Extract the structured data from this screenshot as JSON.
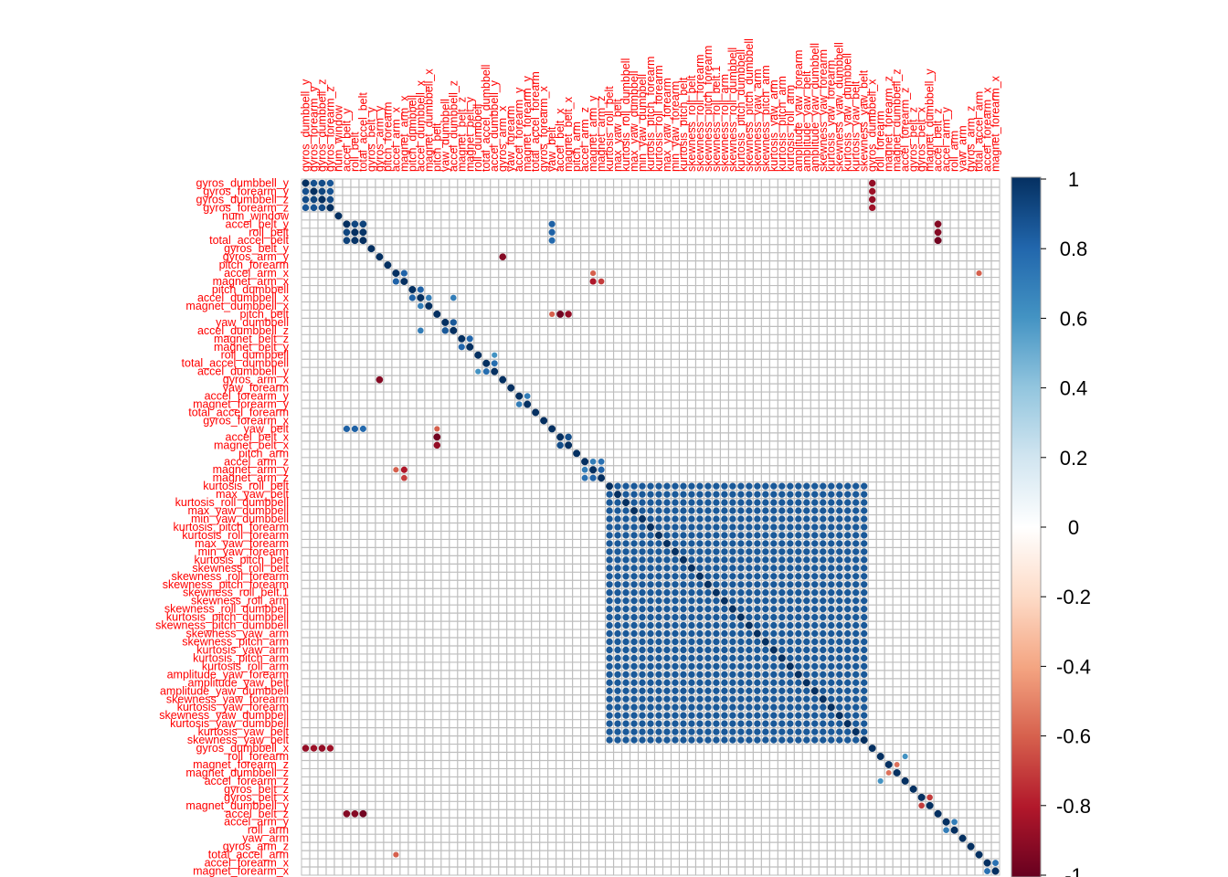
{
  "chart_data": {
    "type": "heatmap",
    "title": "",
    "xlabel": "",
    "ylabel": "",
    "variables": [
      "gyros_dumbbell_y",
      "gyros_forearm_y",
      "gyros_dumbbell_z",
      "gyros_forearm_z",
      "num_window",
      "accel_belt_y",
      "roll_belt",
      "total_accel_belt",
      "gyros_belt_y",
      "gyros_arm_y",
      "pitch_forearm",
      "accel_arm_x",
      "magnet_arm_x",
      "pitch_dumbbell",
      "accel_dumbbell_x",
      "magnet_dumbbell_x",
      "pitch_belt",
      "yaw_dumbbell",
      "accel_dumbbell_z",
      "magnet_belt_z",
      "magnet_belt_y",
      "roll_dumbbell",
      "total_accel_dumbbell",
      "accel_dumbbell_y",
      "gyros_arm_x",
      "yaw_forearm",
      "accel_forearm_y",
      "magnet_forearm_y",
      "total_accel_forearm",
      "gyros_forearm_x",
      "yaw_belt",
      "accel_belt_x",
      "magnet_belt_x",
      "pitch_arm",
      "accel_arm_z",
      "magnet_arm_y",
      "magnet_arm_z",
      "kurtosis_roll_belt",
      "max_yaw_belt",
      "kurtosis_roll_dumbbell",
      "max_yaw_dumbbell",
      "min_yaw_dumbbell",
      "kurtosis_pitch_forearm",
      "kurtosis_roll_forearm",
      "max_yaw_forearm",
      "min_yaw_forearm",
      "kurtosis_pitch_belt",
      "skewness_roll_belt",
      "skewness_roll_forearm",
      "skewness_pitch_forearm",
      "skewness_roll_belt.1",
      "skewness_roll_arm",
      "skewness_roll_dumbbell",
      "kurtosis_pitch_dumbbell",
      "skewness_pitch_dumbbell",
      "skewness_yaw_arm",
      "skewness_pitch_arm",
      "kurtosis_yaw_arm",
      "kurtosis_pitch_arm",
      "kurtosis_roll_arm",
      "amplitude_yaw_forearm",
      "amplitude_yaw_belt",
      "amplitude_yaw_dumbbell",
      "skewness_yaw_forearm",
      "kurtosis_yaw_forearm",
      "skewness_yaw_dumbbell",
      "kurtosis_yaw_dumbbell",
      "kurtosis_yaw_belt",
      "skewness_yaw_belt",
      "gyros_dumbbell_x",
      "roll_forearm",
      "magnet_forearm_z",
      "magnet_dumbbell_z",
      "accel_forearm_z",
      "gyros_belt_z",
      "gyros_belt_x",
      "magnet_dumbbell_y",
      "accel_belt_z",
      "accel_arm_y",
      "roll_arm",
      "yaw_arm",
      "gyros_arm_z",
      "total_accel_arm",
      "accel_forearm_x",
      "magnet_forearm_x"
    ],
    "notable_correlations": [
      {
        "a": "gyros_dumbbell_y",
        "b": "gyros_forearm_y",
        "r": 0.88
      },
      {
        "a": "gyros_dumbbell_y",
        "b": "gyros_dumbbell_z",
        "r": 0.9
      },
      {
        "a": "gyros_dumbbell_y",
        "b": "gyros_forearm_z",
        "r": 0.86
      },
      {
        "a": "gyros_forearm_y",
        "b": "gyros_dumbbell_z",
        "r": 0.92
      },
      {
        "a": "gyros_forearm_y",
        "b": "gyros_forearm_z",
        "r": 0.87
      },
      {
        "a": "gyros_dumbbell_z",
        "b": "gyros_forearm_z",
        "r": 0.9
      },
      {
        "a": "gyros_dumbbell_y",
        "b": "gyros_dumbbell_x",
        "r": -0.88
      },
      {
        "a": "gyros_forearm_y",
        "b": "gyros_dumbbell_x",
        "r": -0.86
      },
      {
        "a": "gyros_dumbbell_z",
        "b": "gyros_dumbbell_x",
        "r": -0.88
      },
      {
        "a": "gyros_forearm_z",
        "b": "gyros_dumbbell_x",
        "r": -0.85
      },
      {
        "a": "accel_belt_y",
        "b": "roll_belt",
        "r": 0.92
      },
      {
        "a": "accel_belt_y",
        "b": "total_accel_belt",
        "r": 0.93
      },
      {
        "a": "roll_belt",
        "b": "total_accel_belt",
        "r": 0.98
      },
      {
        "a": "accel_belt_y",
        "b": "yaw_belt",
        "r": 0.82
      },
      {
        "a": "roll_belt",
        "b": "yaw_belt",
        "r": 0.82
      },
      {
        "a": "total_accel_belt",
        "b": "yaw_belt",
        "r": 0.78
      },
      {
        "a": "roll_belt",
        "b": "accel_belt_z",
        "r": -0.92
      },
      {
        "a": "total_accel_belt",
        "b": "accel_belt_z",
        "r": -0.97
      },
      {
        "a": "accel_belt_y",
        "b": "accel_belt_z",
        "r": -0.92
      },
      {
        "a": "accel_arm_x",
        "b": "magnet_arm_x",
        "r": 0.81
      },
      {
        "a": "accel_arm_x",
        "b": "magnet_arm_y",
        "r": -0.6
      },
      {
        "a": "magnet_arm_x",
        "b": "magnet_arm_y",
        "r": -0.81
      },
      {
        "a": "magnet_arm_x",
        "b": "magnet_arm_z",
        "r": -0.7
      },
      {
        "a": "magnet_arm_y",
        "b": "magnet_arm_z",
        "r": 0.81
      },
      {
        "a": "accel_arm_z",
        "b": "magnet_arm_y",
        "r": 0.7
      },
      {
        "a": "accel_arm_z",
        "b": "magnet_arm_z",
        "r": 0.75
      },
      {
        "a": "pitch_dumbbell",
        "b": "accel_dumbbell_x",
        "r": 0.81
      },
      {
        "a": "accel_dumbbell_x",
        "b": "magnet_dumbbell_x",
        "r": 0.7
      },
      {
        "a": "accel_dumbbell_x",
        "b": "accel_dumbbell_z",
        "r": 0.7
      },
      {
        "a": "yaw_dumbbell",
        "b": "accel_dumbbell_z",
        "r": 0.85
      },
      {
        "a": "pitch_belt",
        "b": "accel_belt_x",
        "r": -0.97
      },
      {
        "a": "pitch_belt",
        "b": "magnet_belt_x",
        "r": -0.88
      },
      {
        "a": "accel_belt_x",
        "b": "magnet_belt_x",
        "r": 0.89
      },
      {
        "a": "pitch_belt",
        "b": "yaw_belt",
        "r": -0.6
      },
      {
        "a": "magnet_belt_z",
        "b": "magnet_belt_y",
        "r": 0.8
      },
      {
        "a": "roll_dumbbell",
        "b": "accel_dumbbell_y",
        "r": 0.6
      },
      {
        "a": "total_accel_dumbbell",
        "b": "accel_dumbbell_y",
        "r": 0.77
      },
      {
        "a": "gyros_arm_x",
        "b": "gyros_arm_y",
        "r": -0.92
      },
      {
        "a": "accel_forearm_y",
        "b": "magnet_forearm_y",
        "r": 0.7
      },
      {
        "a": "gyros_belt_x",
        "b": "magnet_dumbbell_y",
        "r": -0.7
      },
      {
        "a": "roll_forearm",
        "b": "accel_forearm_z",
        "r": 0.6
      },
      {
        "a": "magnet_forearm_z",
        "b": "magnet_dumbbell_z",
        "r": -0.55
      },
      {
        "a": "accel_arm_y",
        "b": "roll_arm",
        "r": 0.7
      },
      {
        "a": "accel_forearm_x",
        "b": "magnet_forearm_x",
        "r": 0.75
      },
      {
        "a": "accel_arm_x",
        "b": "total_accel_arm",
        "r": -0.6
      }
    ],
    "sparse_block": {
      "from": "kurtosis_roll_belt",
      "to": "skewness_yaw_belt",
      "within_r": 0.85,
      "note": "all pairs inside this block strongly positive"
    },
    "colorbar": {
      "min": -1,
      "max": 1,
      "ticks": [
        "1",
        "0.8",
        "0.6",
        "0.4",
        "0.2",
        "0",
        "-0.2",
        "-0.4",
        "-0.6",
        "-0.8",
        "-1"
      ],
      "colors": [
        "#67001F",
        "#B2182B",
        "#D6604D",
        "#F4A582",
        "#FDDBC7",
        "#FFFFFF",
        "#D1E5F0",
        "#92C5DE",
        "#4393C3",
        "#2166AC",
        "#053061"
      ]
    },
    "label_color": "#FF0000",
    "grid_color": "#BEBEBE",
    "method": "circle",
    "order": "hclust",
    "layout": "full"
  }
}
